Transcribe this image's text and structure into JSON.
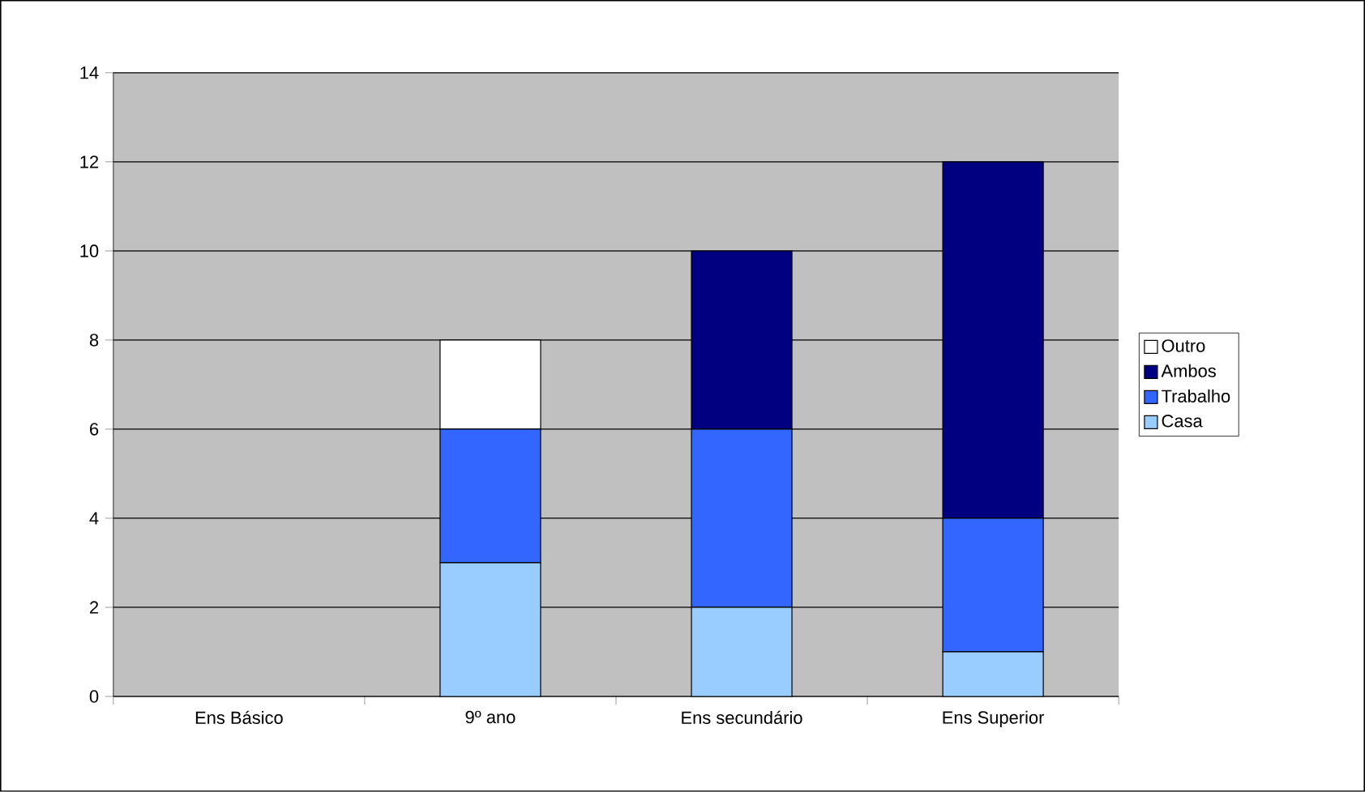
{
  "chart_data": {
    "type": "bar",
    "stacked": true,
    "categories": [
      "Ens Básico",
      "9º ano",
      "Ens secundário",
      "Ens Superior"
    ],
    "series": [
      {
        "name": "Casa",
        "color": "#99ccff",
        "values": [
          0,
          3,
          2,
          1
        ]
      },
      {
        "name": "Trabalho",
        "color": "#3366ff",
        "values": [
          0,
          3,
          4,
          3
        ]
      },
      {
        "name": "Ambos",
        "color": "#000080",
        "values": [
          0,
          0,
          4,
          8
        ]
      },
      {
        "name": "Outro",
        "color": "#ffffff",
        "values": [
          0,
          2,
          0,
          0
        ]
      }
    ],
    "ylim": [
      0,
      14
    ],
    "yticks": [
      0,
      2,
      4,
      6,
      8,
      10,
      12,
      14
    ],
    "grid": "y",
    "legend": "right"
  }
}
